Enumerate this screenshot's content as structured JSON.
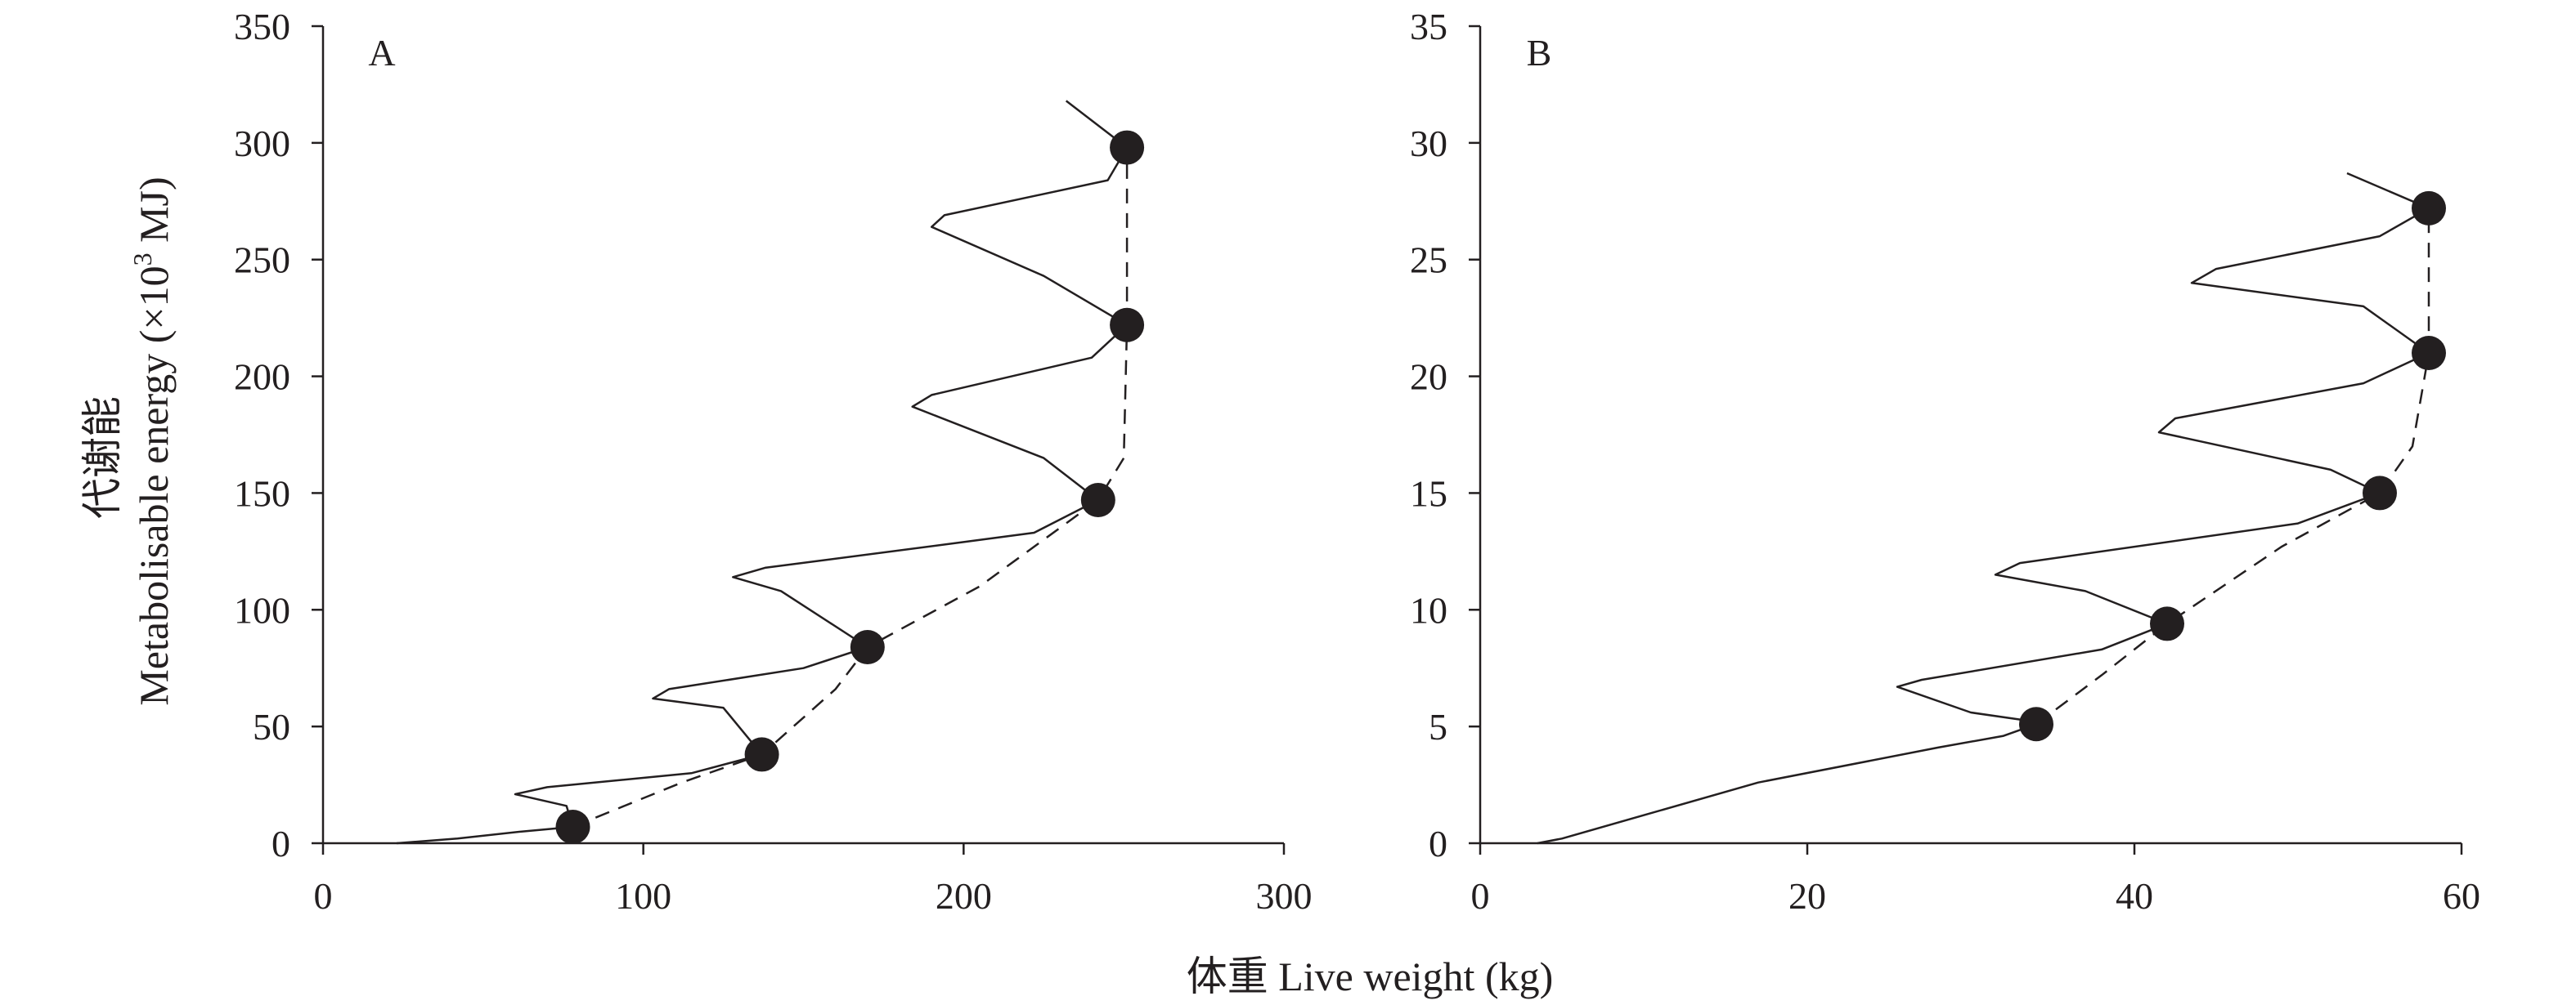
{
  "x_title": "体重 Live weight (kg)",
  "y_title": {
    "zh": "代谢能",
    "en_prefix": "Metabolisable energy (×10",
    "superscript": "3",
    "en_suffix": " MJ)"
  },
  "colors": {
    "ink": "#231f20",
    "background": "#ffffff"
  },
  "chart_data": [
    {
      "type": "line",
      "panel_label": "A",
      "xlim": [
        0,
        300
      ],
      "ylim": [
        0,
        350
      ],
      "x_ticks": [
        0,
        100,
        200,
        300
      ],
      "y_ticks": [
        0,
        50,
        100,
        150,
        200,
        250,
        300,
        350
      ],
      "grid": false,
      "series": [
        {
          "style": "solid",
          "points": [
            [
              23,
              0
            ],
            [
              42,
              2
            ],
            [
              62,
              5
            ],
            [
              70,
              6
            ],
            [
              78,
              7
            ],
            [
              76,
              16
            ],
            [
              60,
              21
            ],
            [
              70,
              24
            ],
            [
              115,
              30
            ],
            [
              137,
              38
            ],
            [
              125,
              58
            ],
            [
              103,
              62
            ],
            [
              108,
              66
            ],
            [
              150,
              75
            ],
            [
              170,
              84
            ],
            [
              143,
              108
            ],
            [
              128,
              114
            ],
            [
              138,
              118
            ],
            [
              200,
              129
            ],
            [
              222,
              133
            ],
            [
              242,
              147
            ],
            [
              225,
              165
            ],
            [
              184,
              187
            ],
            [
              190,
              192
            ],
            [
              240,
              208
            ],
            [
              251,
              222
            ],
            [
              225,
              243
            ],
            [
              190,
              264
            ],
            [
              194,
              269
            ],
            [
              245,
              284
            ],
            [
              251,
              298
            ],
            [
              232,
              318
            ]
          ]
        },
        {
          "style": "dashed",
          "points": [
            [
              78,
              7
            ],
            [
              112,
              26
            ],
            [
              137,
              38
            ],
            [
              160,
              66
            ],
            [
              170,
              84
            ],
            [
              205,
              110
            ],
            [
              242,
              147
            ],
            [
              250,
              165
            ],
            [
              251,
              222
            ],
            [
              251,
              298
            ]
          ]
        },
        {
          "style": "markers",
          "points": [
            [
              78,
              7
            ],
            [
              137,
              38
            ],
            [
              170,
              84
            ],
            [
              242,
              147
            ],
            [
              251,
              222
            ],
            [
              251,
              298
            ]
          ]
        }
      ]
    },
    {
      "type": "line",
      "panel_label": "B",
      "xlim": [
        0,
        60
      ],
      "ylim": [
        0,
        35
      ],
      "x_ticks": [
        0,
        20,
        40,
        60
      ],
      "y_ticks": [
        0,
        5,
        10,
        15,
        20,
        25,
        30,
        35
      ],
      "grid": false,
      "series": [
        {
          "style": "solid",
          "points": [
            [
              3.5,
              0
            ],
            [
              5,
              0.2
            ],
            [
              10,
              1.2
            ],
            [
              17,
              2.6
            ],
            [
              28,
              4.1
            ],
            [
              32,
              4.6
            ],
            [
              34,
              5.1
            ],
            [
              33,
              5.3
            ],
            [
              30,
              5.6
            ],
            [
              25.5,
              6.7
            ],
            [
              27,
              7
            ],
            [
              38,
              8.3
            ],
            [
              42,
              9.4
            ],
            [
              37,
              10.8
            ],
            [
              31.5,
              11.5
            ],
            [
              33,
              12
            ],
            [
              50,
              13.7
            ],
            [
              55,
              15
            ],
            [
              52,
              16
            ],
            [
              41.5,
              17.6
            ],
            [
              42.5,
              18.2
            ],
            [
              54,
              19.7
            ],
            [
              58,
              21
            ],
            [
              54,
              23
            ],
            [
              43.5,
              24
            ],
            [
              45,
              24.6
            ],
            [
              55,
              26
            ],
            [
              58,
              27.2
            ],
            [
              53,
              28.7
            ]
          ]
        },
        {
          "style": "dashed",
          "points": [
            [
              34,
              5.1
            ],
            [
              38,
              7.2
            ],
            [
              42,
              9.4
            ],
            [
              49,
              12.7
            ],
            [
              55,
              15
            ],
            [
              57,
              17
            ],
            [
              58,
              21
            ],
            [
              58,
              27.2
            ]
          ]
        },
        {
          "style": "markers",
          "points": [
            [
              34,
              5.1
            ],
            [
              42,
              9.4
            ],
            [
              55,
              15
            ],
            [
              58,
              21
            ],
            [
              58,
              27.2
            ]
          ]
        }
      ]
    }
  ]
}
